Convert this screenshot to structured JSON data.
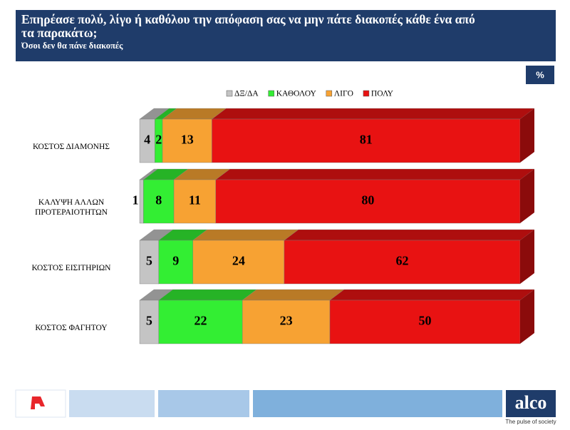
{
  "chart_data": {
    "type": "stacked-bar-3d",
    "title": "Επηρέασε πολύ, λίγο ή καθόλου την απόφαση σας να μην πάτε διακοπές κάθε ένα από τα παρακάτω;",
    "subtitle": "Όσοι δεν θα πάνε διακοπές",
    "unit_badge": "%",
    "categories": [
      "ΚΟΣΤΟΣ ΔΙΑΜΟΝΗΣ",
      "ΚΑΛΥΨΗ ΑΛΛΩΝ ΠΡΟΤΕΡΑΙΟΤΗΤΩΝ",
      "ΚΟΣΤΟΣ ΕΙΣΙΤΗΡΙΩΝ",
      "ΚΟΣΤΟΣ ΦΑΓΗΤΟΥ"
    ],
    "series": [
      {
        "name": "ΔΞ/ΔΑ",
        "color": "#c4c4c4",
        "values": [
          4,
          1,
          5,
          5
        ]
      },
      {
        "name": "ΚΑΘΟΛΟΥ",
        "color": "#33ee33",
        "values": [
          2,
          8,
          9,
          22
        ]
      },
      {
        "name": "ΛΙΓΟ",
        "color": "#f7a233",
        "values": [
          13,
          11,
          24,
          23
        ]
      },
      {
        "name": "ΠΟΛΥ",
        "color": "#e81212",
        "values": [
          81,
          80,
          62,
          50
        ]
      }
    ],
    "xlim": [
      0,
      100
    ]
  },
  "footer": {
    "brand": "alco",
    "tagline": "The pulse of society"
  }
}
